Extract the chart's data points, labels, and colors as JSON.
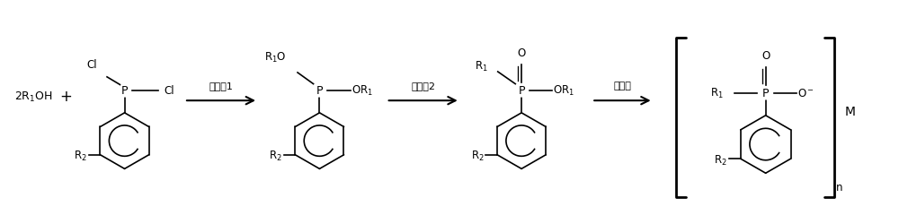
{
  "background_color": "#ffffff",
  "line_color": "#000000",
  "text_color": "#000000",
  "figsize": [
    10.0,
    2.4
  ],
  "dpi": 100,
  "arrow1_label": "催化剁1",
  "arrow2_label": "催化剁2",
  "arrow3_label": "无机盐",
  "M_label": "M",
  "n_label": "n"
}
